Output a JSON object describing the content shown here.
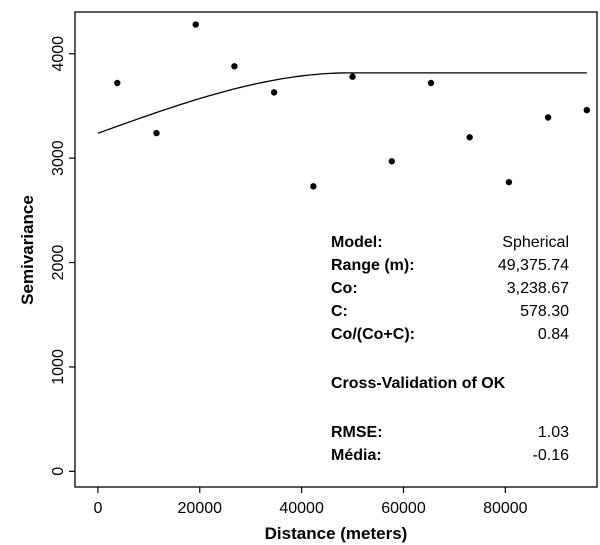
{
  "chart_data": {
    "type": "scatter",
    "title": "",
    "xlabel": "Distance (meters)",
    "ylabel": "Semivariance",
    "xlim": [
      -4500,
      98000
    ],
    "ylim": [
      -150,
      4400
    ],
    "xticks": [
      "0",
      "20000",
      "40000",
      "60000",
      "80000"
    ],
    "yticks": [
      "0",
      "1000",
      "2000",
      "3000",
      "4000"
    ],
    "grid": false,
    "points": {
      "x": [
        3800,
        11500,
        19200,
        26800,
        34600,
        42300,
        50000,
        57700,
        65400,
        73000,
        80700,
        88400,
        96000
      ],
      "y": [
        3720,
        3240,
        4280,
        3880,
        3630,
        2730,
        3780,
        2970,
        3720,
        3200,
        2770,
        3390,
        3460
      ]
    },
    "model_curve": {
      "model": "spherical",
      "nugget": 3238.67,
      "partial_sill": 578.3,
      "range": 49375.74,
      "x_start": 0,
      "x_end": 96000
    },
    "annotation": {
      "rows": [
        {
          "key": "Model:",
          "value": "Spherical"
        },
        {
          "key": "Range (m):",
          "value": "49,375.74"
        },
        {
          "key": "Co:",
          "value": "3,238.67"
        },
        {
          "key": "C:",
          "value": "578.30"
        },
        {
          "key": "Co/(Co+C):",
          "value": "0.84"
        }
      ],
      "heading": "Cross-Validation of OK",
      "cv_rows": [
        {
          "key": "RMSE:",
          "value": "1.03"
        },
        {
          "key": "Média:",
          "value": "-0.16"
        }
      ]
    }
  }
}
